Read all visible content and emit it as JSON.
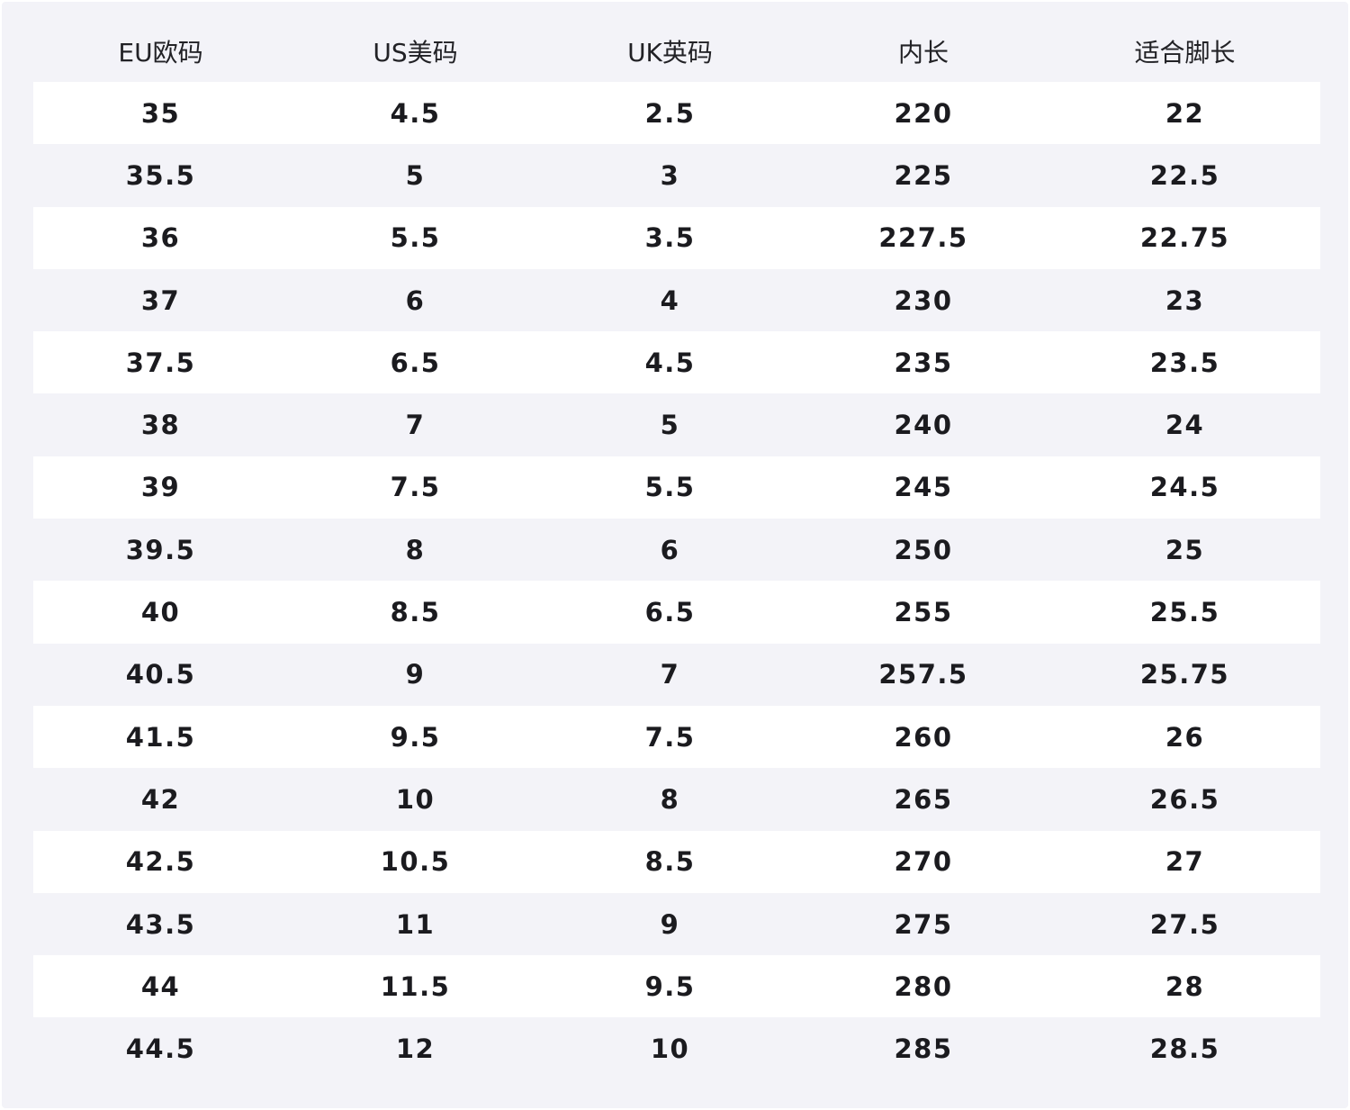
{
  "table": {
    "headers": [
      "EU欧码",
      "US美码",
      "UK英码",
      "内长",
      "适合脚长"
    ],
    "rows": [
      [
        "35",
        "4.5",
        "2.5",
        "220",
        "22"
      ],
      [
        "35.5",
        "5",
        "3",
        "225",
        "22.5"
      ],
      [
        "36",
        "5.5",
        "3.5",
        "227.5",
        "22.75"
      ],
      [
        "37",
        "6",
        "4",
        "230",
        "23"
      ],
      [
        "37.5",
        "6.5",
        "4.5",
        "235",
        "23.5"
      ],
      [
        "38",
        "7",
        "5",
        "240",
        "24"
      ],
      [
        "39",
        "7.5",
        "5.5",
        "245",
        "24.5"
      ],
      [
        "39.5",
        "8",
        "6",
        "250",
        "25"
      ],
      [
        "40",
        "8.5",
        "6.5",
        "255",
        "25.5"
      ],
      [
        "40.5",
        "9",
        "7",
        "257.5",
        "25.75"
      ],
      [
        "41.5",
        "9.5",
        "7.5",
        "260",
        "26"
      ],
      [
        "42",
        "10",
        "8",
        "265",
        "26.5"
      ],
      [
        "42.5",
        "10.5",
        "8.5",
        "270",
        "27"
      ],
      [
        "43.5",
        "11",
        "9",
        "275",
        "27.5"
      ],
      [
        "44",
        "11.5",
        "9.5",
        "280",
        "28"
      ],
      [
        "44.5",
        "12",
        "10",
        "285",
        "28.5"
      ]
    ]
  },
  "colors": {
    "page_background": "#f3f3f8",
    "stripe_row": "#ffffff",
    "text": "#1b1b1f"
  }
}
